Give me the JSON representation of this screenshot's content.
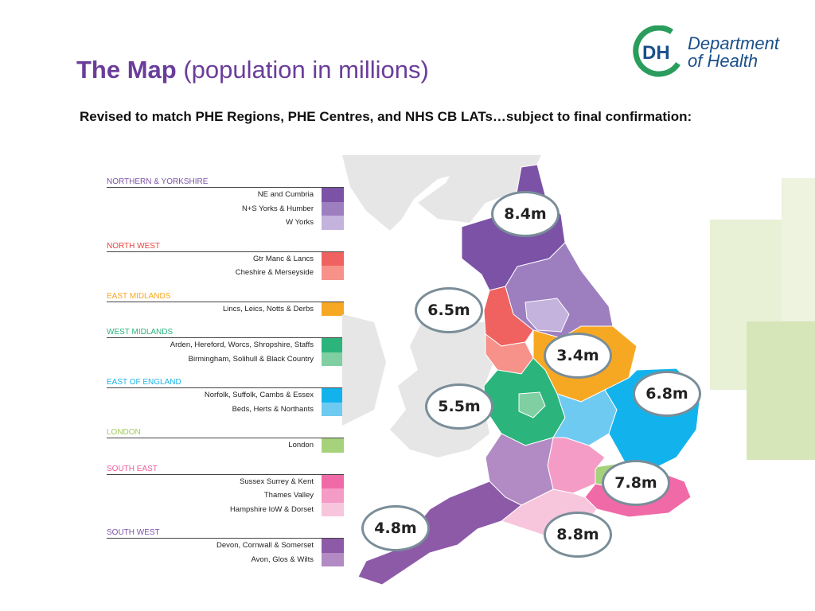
{
  "slide": {
    "title_main": "The Map",
    "title_sub": "(population in millions)",
    "subtitle": "Revised to match PHE Regions, PHE Centres, and NHS CB LATs…subject to final confirmation:"
  },
  "logo": {
    "initials": "DH",
    "line1": "Department",
    "line2": "of Health"
  },
  "legend": [
    {
      "title": "NORTHERN & YORKSHIRE",
      "color": "#7b52a6",
      "items": [
        {
          "label": "NE and Cumbria",
          "color": "#7b52a6"
        },
        {
          "label": "N+S Yorks & Humber",
          "color": "#9d7fc0"
        },
        {
          "label": "W Yorks",
          "color": "#c4b3dc"
        }
      ]
    },
    {
      "title": "NORTH WEST",
      "color": "#e8443f",
      "items": [
        {
          "label": "Gtr Manc & Lancs",
          "color": "#f0625f"
        },
        {
          "label": "Cheshire & Merseyside",
          "color": "#f6928a"
        }
      ]
    },
    {
      "title": "EAST MIDLANDS",
      "color": "#f7a823",
      "items": [
        {
          "label": "Lincs, Leics, Notts & Derbs",
          "color": "#f7a823"
        }
      ]
    },
    {
      "title": "WEST MIDLANDS",
      "color": "#2bb47c",
      "items": [
        {
          "label": "Arden, Hereford, Worcs, Shropshire, Staffs",
          "color": "#2bb47c"
        },
        {
          "label": "Birmingham, Solihull & Black Country",
          "color": "#7fcfa3"
        }
      ]
    },
    {
      "title": "EAST OF ENGLAND",
      "color": "#1cb4e8",
      "items": [
        {
          "label": "Norfolk, Suffolk, Cambs & Essex",
          "color": "#12b3ec"
        },
        {
          "label": "Beds, Herts & Northants",
          "color": "#6fcaf1"
        }
      ]
    },
    {
      "title": "LONDON",
      "color": "#9ccb5a",
      "items": [
        {
          "label": "London",
          "color": "#a5d27a"
        }
      ]
    },
    {
      "title": "SOUTH EAST",
      "color": "#ec5c9a",
      "items": [
        {
          "label": "Sussex Surrey & Kent",
          "color": "#f06aa7"
        },
        {
          "label": "Thames Valley",
          "color": "#f59cc6"
        },
        {
          "label": "Hampshire IoW & Dorset",
          "color": "#f8c6dc"
        }
      ]
    },
    {
      "title": "SOUTH WEST",
      "color": "#7b52a6",
      "items": [
        {
          "label": "Devon, Cornwall & Somerset",
          "color": "#8d5aa8"
        },
        {
          "label": "Avon, Glos & Wilts",
          "color": "#b28ac4"
        }
      ]
    }
  ],
  "bubbles": [
    {
      "name": "northern-yorkshire",
      "value": "8.4m"
    },
    {
      "name": "north-west",
      "value": "6.5m"
    },
    {
      "name": "east-midlands",
      "value": "3.4m"
    },
    {
      "name": "east-of-england",
      "value": "6.8m"
    },
    {
      "name": "west-midlands",
      "value": "5.5m"
    },
    {
      "name": "south-east",
      "value": "7.8m"
    },
    {
      "name": "south-west",
      "value": "4.8m"
    },
    {
      "name": "london-se",
      "value": "8.8m"
    }
  ],
  "colors": {
    "title": "#6a3d9a",
    "logo": "#1a4f8a",
    "logo_green": "#2a9d5c",
    "land_grey": "#e6e6e6",
    "bubble_border": "#7a8d99"
  }
}
